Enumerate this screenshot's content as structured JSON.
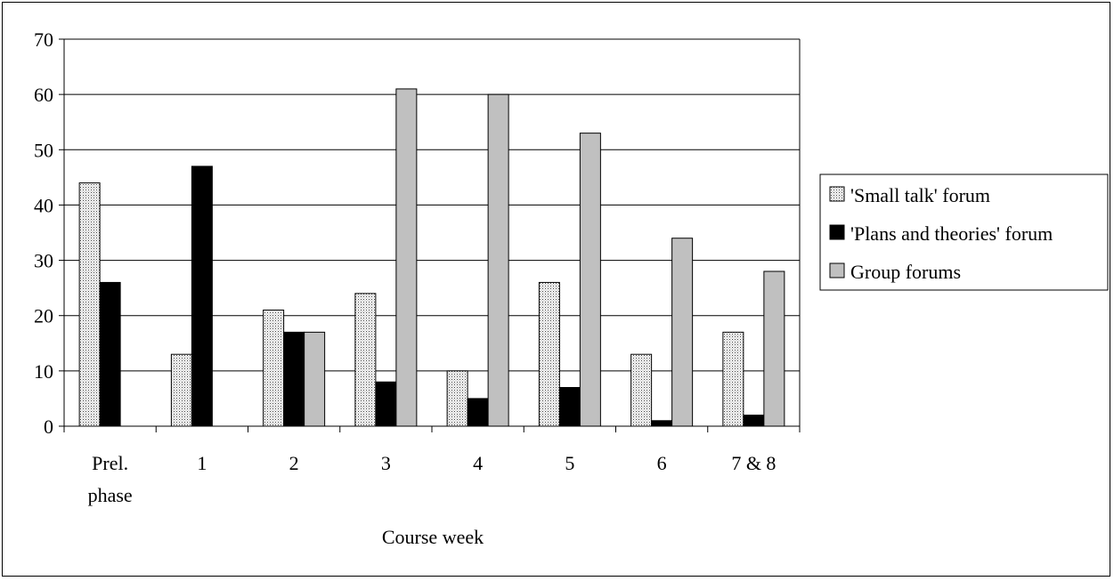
{
  "chart_data": {
    "type": "bar",
    "title": "",
    "xlabel": "Course week",
    "ylabel": "",
    "ylim": [
      0,
      70
    ],
    "yticks": [
      0,
      10,
      20,
      30,
      40,
      50,
      60,
      70
    ],
    "grid": true,
    "legend_position": "right",
    "categories": [
      [
        "Prel.",
        "phase"
      ],
      [
        "1"
      ],
      [
        "2"
      ],
      [
        "3"
      ],
      [
        "4"
      ],
      [
        "5"
      ],
      [
        "6"
      ],
      [
        "7 & 8"
      ]
    ],
    "series": [
      {
        "name": "'Small talk' forum",
        "pattern": "dotted",
        "color": "#ffffff",
        "values": [
          44,
          13,
          21,
          24,
          10,
          26,
          13,
          17
        ]
      },
      {
        "name": "'Plans and theories' forum",
        "pattern": "solid",
        "color": "#000000",
        "values": [
          26,
          47,
          17,
          8,
          5,
          7,
          1,
          2
        ]
      },
      {
        "name": "Group forums",
        "pattern": "solid",
        "color": "#c0c0c0",
        "values": [
          0,
          0,
          17,
          61,
          60,
          53,
          34,
          28
        ]
      }
    ]
  }
}
